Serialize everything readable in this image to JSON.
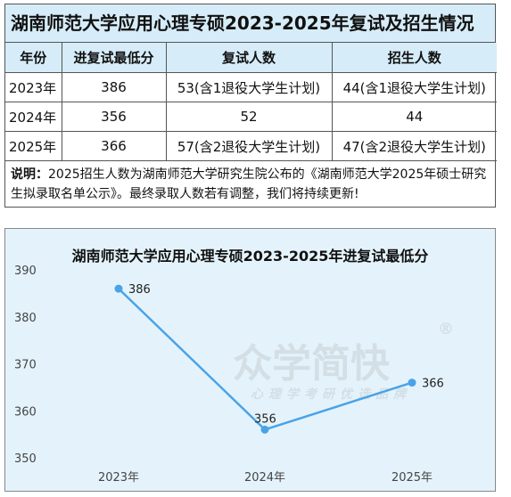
{
  "table": {
    "title": "湖南师范大学应用心理专硕2023-2025年复试及招生情况",
    "headers": [
      "年份",
      "进复试最低分",
      "复试人数",
      "招生人数"
    ],
    "rows": [
      [
        "2023年",
        "386",
        "53(含1退役大学生计划)",
        "44(含1退役大学生计划)"
      ],
      [
        "2024年",
        "356",
        "52",
        "44"
      ],
      [
        "2025年",
        "366",
        "57(含2退役大学生计划)",
        "47(含2退役大学生计划)"
      ]
    ],
    "note_label": "说明：",
    "note_text": "2025招生人数为湖南师范大学研究生院公布的《湖南师范大学2025年硕士研究生拟录取名单公示》。最终录取人数若有调整，我们将持续更新!"
  },
  "watermark": {
    "brand": "众学简快",
    "registered": "®",
    "slogan": "心理学考研优选品牌"
  },
  "colors": {
    "header_bg": "#d6ecf8",
    "chart_bg": "#e4f3fb",
    "line": "#4aa3e8"
  },
  "chart_data": {
    "type": "line",
    "title": "湖南师范大学应用心理专硕2023-2025年进复试最低分",
    "categories": [
      "2023年",
      "2024年",
      "2025年"
    ],
    "values": [
      386,
      356,
      366
    ],
    "yticks": [
      350,
      360,
      370,
      380,
      390
    ],
    "ylim": [
      350,
      390
    ],
    "grid": false,
    "legend": "none"
  }
}
